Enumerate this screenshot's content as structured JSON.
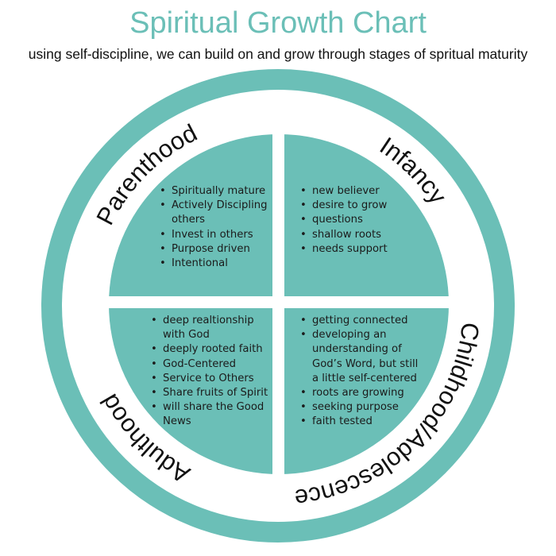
{
  "title": "Spiritual Growth Chart",
  "subtitle": "using self-discipline, we can  build on and grow through stages of spritual maturity",
  "colors": {
    "teal": "#6bbfb7",
    "text": "#111111",
    "title": "#6bbfb7"
  },
  "stages": [
    {
      "label": "Parenthood",
      "items": [
        "Spiritually mature",
        "Actively Discipling others",
        "Invest in others",
        "Purpose driven",
        "Intentional"
      ]
    },
    {
      "label": "Infancy",
      "items": [
        "new believer",
        "desire to grow",
        "questions",
        "shallow roots",
        "needs support"
      ]
    },
    {
      "label": "Childhood/Adolescence",
      "items": [
        "getting connected",
        "developing an understanding of God’s Word, but still a little self-centered",
        "roots are growing",
        "seeking purpose",
        "faith tested"
      ]
    },
    {
      "label": "Adulthood",
      "items": [
        "deep realtionship with God",
        "deeply rooted faith",
        "God-Centered",
        "Service to Others",
        "Share fruits of Spirit",
        "will share the Good News"
      ]
    }
  ]
}
